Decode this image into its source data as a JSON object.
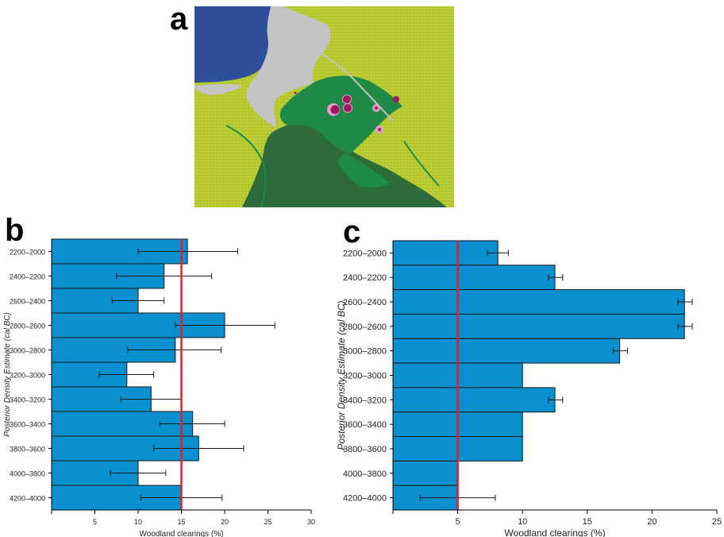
{
  "panels": {
    "a": "a",
    "b": "b",
    "c": "c"
  },
  "colors": {
    "bar": "#0a8fcf",
    "bar_stroke": "#1a1a1a",
    "threshold": "#e0202a",
    "map_sea": "#2f4e9c",
    "map_land": "#b5c92d",
    "map_plain": "#c4c4c4",
    "map_forest": "#1f8a47",
    "map_forest_dark": "#2d6b3a",
    "site_outer": "#e59ad0",
    "site_inner": "#9c1a5c"
  },
  "chart_data": [
    {
      "id": "b",
      "type": "bar",
      "orientation": "horizontal",
      "categories": [
        "2200–2000",
        "2400–2200",
        "2600–2400",
        "2800–2600",
        "3000–2800",
        "3200–3000",
        "3400–3200",
        "3600–3400",
        "3800–3600",
        "4000–3800",
        "4200–4000"
      ],
      "values": [
        15.7,
        13,
        10,
        20,
        14.3,
        8.7,
        11.5,
        16.3,
        17,
        10,
        15
      ],
      "error_low": [
        10,
        7.5,
        7,
        14.3,
        8.8,
        5.5,
        8,
        12.5,
        11.8,
        6.8,
        10.3
      ],
      "error_high": [
        21.5,
        18.5,
        13,
        25.8,
        19.6,
        11.8,
        15,
        20,
        22.2,
        13.2,
        19.7
      ],
      "threshold": 15,
      "xlabel": "Woodland clearings (%)",
      "ylabel": "Posterior Density Estimate (cal BC)",
      "xlim": [
        0,
        30
      ],
      "xticks": [
        5,
        10,
        15,
        20,
        25,
        30
      ]
    },
    {
      "id": "c",
      "type": "bar",
      "orientation": "horizontal",
      "categories": [
        "2200–2000",
        "2400–2200",
        "2600–2400",
        "2800–2600",
        "3000–2800",
        "3200–3000",
        "3400–3200",
        "3600–3400",
        "3800–3600",
        "4000–3800",
        "4200–4000"
      ],
      "values": [
        8.1,
        12.5,
        22.5,
        22.5,
        17.5,
        10,
        12.5,
        10,
        10,
        5,
        5
      ],
      "error_low": [
        7.3,
        12,
        22,
        22,
        17,
        null,
        12,
        null,
        null,
        null,
        2.1
      ],
      "error_high": [
        8.9,
        13.1,
        23.1,
        23.1,
        18.1,
        null,
        13.1,
        null,
        null,
        null,
        7.9
      ],
      "threshold": 5,
      "xlabel": "Woodland clearings (%)",
      "ylabel": "Posterior Density Estimate (cal BC)",
      "xlim": [
        0,
        25
      ],
      "xticks": [
        5,
        10,
        15,
        20,
        25
      ]
    }
  ]
}
